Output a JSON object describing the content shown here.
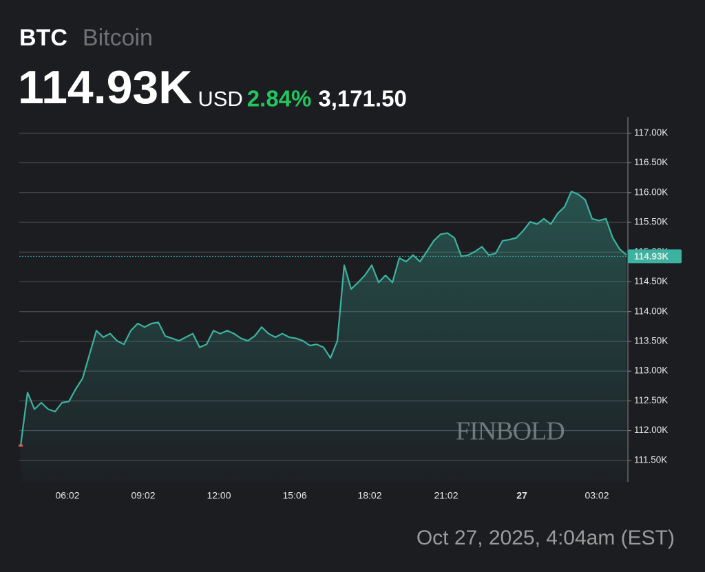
{
  "header": {
    "ticker": "BTC",
    "name": "Bitcoin",
    "price": "114.93K",
    "currency": "USD",
    "change_percent": "2.84%",
    "change_value": "3,171.50"
  },
  "chart_data": {
    "type": "line",
    "color": "#3cb3a0",
    "values": [
      111750,
      112640,
      112360,
      112470,
      112360,
      112320,
      112470,
      112490,
      112700,
      112880,
      113280,
      113680,
      113570,
      113630,
      113510,
      113450,
      113680,
      113800,
      113740,
      113800,
      113820,
      113590,
      113550,
      113510,
      113570,
      113630,
      113400,
      113450,
      113680,
      113630,
      113680,
      113630,
      113550,
      113510,
      113590,
      113740,
      113630,
      113570,
      113630,
      113570,
      113550,
      113510,
      113430,
      113450,
      113400,
      113220,
      113510,
      114780,
      114380,
      114490,
      114610,
      114780,
      114490,
      114610,
      114490,
      114900,
      114840,
      114950,
      114840,
      115010,
      115190,
      115300,
      115320,
      115240,
      114930,
      114950,
      115010,
      115090,
      114950,
      114980,
      115190,
      115210,
      115240,
      115360,
      115510,
      115470,
      115560,
      115470,
      115650,
      115760,
      116020,
      115970,
      115880,
      115560,
      115530,
      115560,
      115240,
      115050,
      114950
    ],
    "xlim": [
      0,
      88
    ],
    "xticks": [
      {
        "value": 6.8,
        "label": "06:02"
      },
      {
        "value": 17.8,
        "label": "09:02"
      },
      {
        "value": 28.8,
        "label": "12:00"
      },
      {
        "value": 39.8,
        "label": "15:06"
      },
      {
        "value": 50.7,
        "label": "18:02"
      },
      {
        "value": 61.8,
        "label": "21:02"
      },
      {
        "value": 72.8,
        "label": "27"
      },
      {
        "value": 83.7,
        "label": "03:02"
      }
    ],
    "ylim": [
      111140,
      117270
    ],
    "yticks": [
      {
        "value": 117000,
        "label": "117.00K"
      },
      {
        "value": 116500,
        "label": "116.50K"
      },
      {
        "value": 116000,
        "label": "116.00K"
      },
      {
        "value": 115500,
        "label": "115.50K"
      },
      {
        "value": 115000,
        "label": "115.00K"
      },
      {
        "value": 114500,
        "label": "114.50K"
      },
      {
        "value": 114000,
        "label": "114.00K"
      },
      {
        "value": 113500,
        "label": "113.50K"
      },
      {
        "value": 113000,
        "label": "113.00K"
      },
      {
        "value": 112500,
        "label": "112.50K"
      },
      {
        "value": 112000,
        "label": "112.00K"
      },
      {
        "value": 111500,
        "label": "111.50K"
      }
    ],
    "grid": true,
    "current_price": {
      "value": 114930,
      "label": "114.93K"
    },
    "watermark": "FINBOLD"
  },
  "footer": {
    "date": "Oct 27, 2025, 4:04am (EST)"
  }
}
